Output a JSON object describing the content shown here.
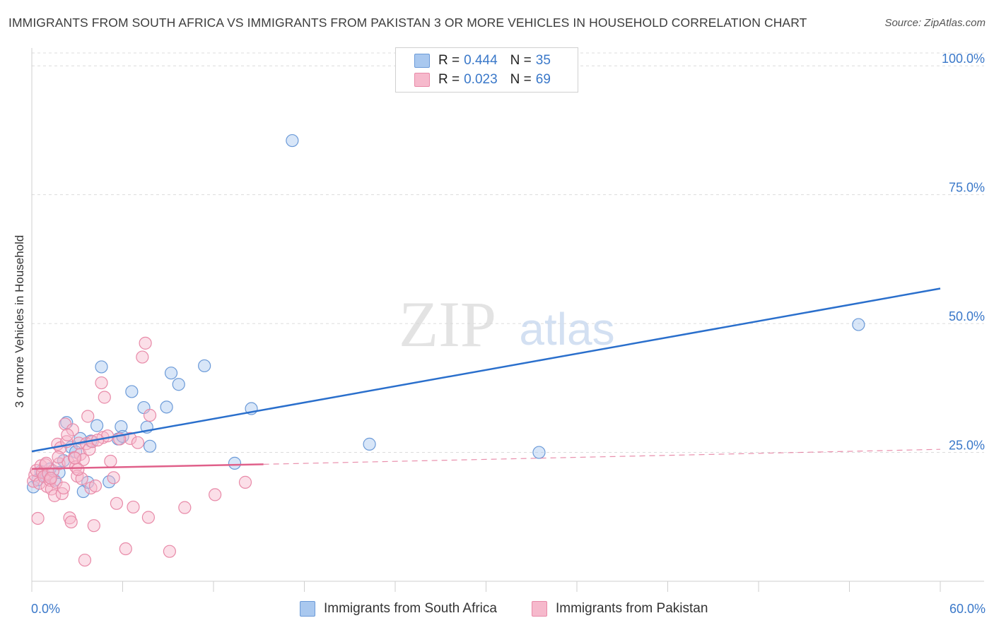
{
  "title": "IMMIGRANTS FROM SOUTH AFRICA VS IMMIGRANTS FROM PAKISTAN 3 OR MORE VEHICLES IN HOUSEHOLD CORRELATION CHART",
  "source": "Source: ZipAtlas.com",
  "watermark": {
    "zip": "ZIP",
    "atlas": "atlas"
  },
  "legend": {
    "south_africa": {
      "r_label": "R = ",
      "r_value": "0.444",
      "n_label": "N = ",
      "n_value": "35"
    },
    "pakistan": {
      "r_label": "R = ",
      "r_value": "0.023",
      "n_label": "N = ",
      "n_value": "69"
    }
  },
  "bottom_legend": {
    "south_africa": "Immigrants from South Africa",
    "pakistan": "Immigrants from Pakistan"
  },
  "x_axis": {
    "min_label": "0.0%",
    "max_label": "60.0%"
  },
  "chart_data": {
    "type": "scatter",
    "title": "IMMIGRANTS FROM SOUTH AFRICA VS IMMIGRANTS FROM PAKISTAN 3 OR MORE VEHICLES IN HOUSEHOLD CORRELATION CHART",
    "xlabel": "",
    "ylabel": "3 or more Vehicles in Household",
    "xlim": [
      0,
      60
    ],
    "ylim": [
      0,
      102.5
    ],
    "y_ticks": [
      {
        "value": 25,
        "label": "25.0%"
      },
      {
        "value": 50,
        "label": "50.0%"
      },
      {
        "value": 75,
        "label": "75.0%"
      },
      {
        "value": 100,
        "label": "100.0%"
      }
    ],
    "x_tick_values": [
      0,
      6,
      12,
      18,
      24,
      30,
      36,
      42,
      48,
      54,
      60
    ],
    "colors": {
      "south_africa_fill": "#a9c8ef",
      "south_africa_stroke": "#6b9ad8",
      "south_africa_line": "#2a6fcc",
      "pakistan_fill": "#f6b9cc",
      "pakistan_stroke": "#e88aa8",
      "pakistan_line": "#e0608a",
      "grid": "#dcdcdc",
      "tick_label": "#3a78c9"
    },
    "series": [
      {
        "name": "Immigrants from South Africa",
        "key": "south_africa",
        "trend": {
          "x0": 0,
          "y0": 25.2,
          "x1": 60,
          "y1": 56.8
        },
        "points": [
          [
            0.1,
            18.3
          ],
          [
            0.4,
            19.7
          ],
          [
            0.6,
            21.3
          ],
          [
            0.9,
            20.4
          ],
          [
            1.2,
            21.8
          ],
          [
            1.5,
            19.6
          ],
          [
            1.8,
            21.1
          ],
          [
            2.1,
            23.4
          ],
          [
            2.3,
            30.8
          ],
          [
            2.6,
            26.0
          ],
          [
            2.9,
            25.1
          ],
          [
            3.2,
            27.7
          ],
          [
            3.4,
            17.4
          ],
          [
            3.7,
            19.2
          ],
          [
            3.9,
            27.2
          ],
          [
            4.3,
            30.2
          ],
          [
            4.6,
            41.6
          ],
          [
            5.1,
            19.3
          ],
          [
            5.7,
            27.6
          ],
          [
            5.9,
            30.0
          ],
          [
            6.0,
            28.1
          ],
          [
            6.6,
            36.8
          ],
          [
            7.4,
            33.7
          ],
          [
            7.6,
            29.9
          ],
          [
            7.8,
            26.2
          ],
          [
            8.9,
            33.8
          ],
          [
            9.2,
            40.4
          ],
          [
            9.7,
            38.2
          ],
          [
            11.4,
            41.8
          ],
          [
            13.4,
            22.9
          ],
          [
            14.5,
            33.5
          ],
          [
            17.2,
            85.5
          ],
          [
            22.3,
            26.6
          ],
          [
            33.5,
            25.0
          ],
          [
            54.6,
            49.8
          ]
        ]
      },
      {
        "name": "Immigrants from Pakistan",
        "key": "pakistan",
        "trend": {
          "x0": 0,
          "y0": 21.8,
          "x1": 15.3,
          "y1": 22.7
        },
        "trend_dashed": {
          "x0": 15.3,
          "y0": 22.7,
          "x1": 60,
          "y1": 25.6
        },
        "points": [
          [
            0.1,
            19.4
          ],
          [
            0.2,
            20.6
          ],
          [
            0.3,
            21.5
          ],
          [
            0.4,
            12.2
          ],
          [
            0.5,
            19.0
          ],
          [
            0.6,
            22.4
          ],
          [
            0.7,
            21.1
          ],
          [
            0.8,
            20.3
          ],
          [
            0.9,
            22.6
          ],
          [
            1.0,
            18.4
          ],
          [
            1.1,
            20.9
          ],
          [
            1.2,
            19.6
          ],
          [
            1.3,
            17.9
          ],
          [
            1.4,
            21.4
          ],
          [
            1.5,
            16.6
          ],
          [
            1.6,
            19.2
          ],
          [
            1.7,
            26.6
          ],
          [
            1.8,
            22.8
          ],
          [
            1.9,
            25.9
          ],
          [
            2.0,
            17.0
          ],
          [
            2.1,
            18.1
          ],
          [
            2.2,
            30.5
          ],
          [
            2.3,
            27.1
          ],
          [
            2.4,
            23.1
          ],
          [
            2.5,
            12.3
          ],
          [
            2.6,
            11.5
          ],
          [
            2.7,
            29.4
          ],
          [
            2.8,
            24.0
          ],
          [
            2.9,
            22.2
          ],
          [
            3.0,
            20.4
          ],
          [
            3.1,
            26.8
          ],
          [
            3.2,
            24.6
          ],
          [
            3.3,
            19.9
          ],
          [
            3.4,
            23.6
          ],
          [
            3.5,
            4.1
          ],
          [
            3.6,
            26.7
          ],
          [
            3.7,
            32.0
          ],
          [
            3.8,
            25.6
          ],
          [
            3.9,
            18.1
          ],
          [
            4.0,
            27.1
          ],
          [
            4.1,
            10.8
          ],
          [
            4.2,
            18.5
          ],
          [
            4.6,
            38.5
          ],
          [
            4.7,
            27.9
          ],
          [
            4.8,
            35.7
          ],
          [
            5.0,
            28.2
          ],
          [
            5.2,
            23.3
          ],
          [
            5.4,
            20.1
          ],
          [
            5.6,
            15.1
          ],
          [
            6.2,
            6.3
          ],
          [
            6.5,
            27.7
          ],
          [
            6.7,
            14.4
          ],
          [
            7.0,
            26.9
          ],
          [
            7.3,
            43.5
          ],
          [
            7.5,
            46.2
          ],
          [
            7.7,
            12.4
          ],
          [
            7.8,
            32.2
          ],
          [
            9.1,
            5.8
          ],
          [
            10.1,
            14.3
          ],
          [
            12.1,
            16.8
          ],
          [
            14.1,
            19.2
          ],
          [
            2.35,
            28.4
          ],
          [
            1.75,
            24.1
          ],
          [
            3.05,
            21.7
          ],
          [
            0.95,
            22.9
          ],
          [
            1.25,
            20.0
          ],
          [
            4.35,
            27.4
          ],
          [
            2.85,
            23.9
          ],
          [
            5.8,
            27.6
          ]
        ]
      }
    ]
  }
}
